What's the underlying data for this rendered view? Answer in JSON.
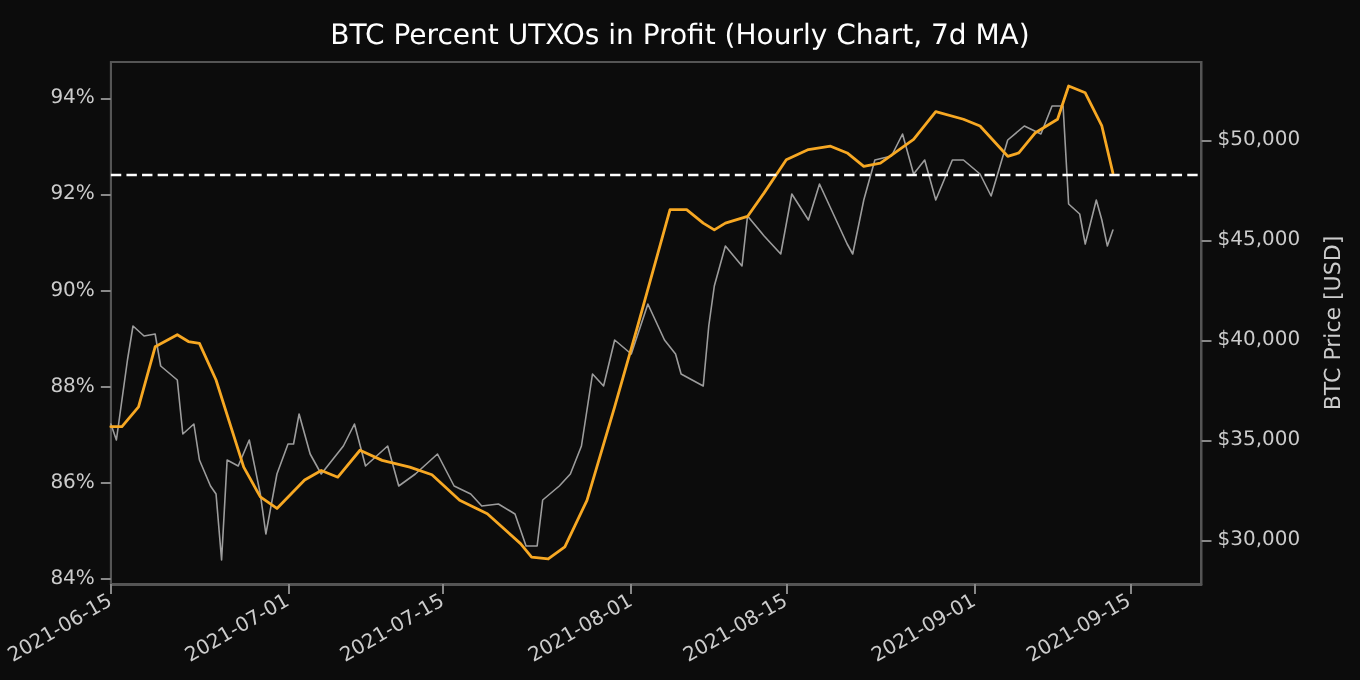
{
  "chart_data": {
    "type": "line",
    "title": "BTC Percent UTXOs in Profit (Hourly Chart, 7d MA)",
    "y2label": "BTC Price [USD]",
    "xlim": [
      "2021-06-15",
      "2021-09-21T12:00"
    ],
    "xticks": [
      "2021-06-15",
      "2021-07-01",
      "2021-07-15",
      "2021-08-01",
      "2021-08-15",
      "2021-09-01",
      "2021-09-15"
    ],
    "ylim": [
      83.9,
      94.75
    ],
    "yticks": [
      {
        "value": 84,
        "label": "84%"
      },
      {
        "value": 86,
        "label": "86%"
      },
      {
        "value": 88,
        "label": "88%"
      },
      {
        "value": 90,
        "label": "90%"
      },
      {
        "value": 92,
        "label": "92%"
      },
      {
        "value": 94,
        "label": "94%"
      }
    ],
    "y2lim": [
      27800,
      53900
    ],
    "y2ticks": [
      {
        "value": 30000,
        "label": "$30,000"
      },
      {
        "value": 35000,
        "label": "$35,000"
      },
      {
        "value": 40000,
        "label": "$40,000"
      },
      {
        "value": 45000,
        "label": "$45,000"
      },
      {
        "value": 50000,
        "label": "$50,000"
      }
    ],
    "grid": false,
    "marker": "none",
    "line_style": "solid",
    "ref_lines": [
      {
        "axis": "y",
        "value": 92.4,
        "color": "#ffffff",
        "line_style": "dashed"
      }
    ],
    "series": [
      {
        "color": "#9c9c9c",
        "axis": "y2",
        "x": [
          "2021-06-15T00:00",
          "2021-06-15T12:00",
          "2021-06-16T12:00",
          "2021-06-17T00:00",
          "2021-06-18T00:00",
          "2021-06-19T00:00",
          "2021-06-19T12:00",
          "2021-06-21T00:00",
          "2021-06-21T12:00",
          "2021-06-22T12:00",
          "2021-06-23T00:00",
          "2021-06-24T00:00",
          "2021-06-24T12:00",
          "2021-06-25T00:00",
          "2021-06-25T12:00",
          "2021-06-26T12:00",
          "2021-06-27T12:00",
          "2021-06-28T12:00",
          "2021-06-29T00:00",
          "2021-06-30T00:00",
          "2021-07-01T00:00",
          "2021-07-01T12:00",
          "2021-07-02T00:00",
          "2021-07-03T00:00",
          "2021-07-04T00:00",
          "2021-07-06T00:00",
          "2021-07-07T00:00",
          "2021-07-08T00:00",
          "2021-07-10T00:00",
          "2021-07-11T00:00",
          "2021-07-12T12:00",
          "2021-07-14T12:00",
          "2021-07-16T00:00",
          "2021-07-17T12:00",
          "2021-07-18T12:00",
          "2021-07-20T00:00",
          "2021-07-21T12:00",
          "2021-07-22T12:00",
          "2021-07-23T12:00",
          "2021-07-24T00:00",
          "2021-07-25T12:00",
          "2021-07-26T12:00",
          "2021-07-27T12:00",
          "2021-07-28T12:00",
          "2021-07-29T12:00",
          "2021-07-30T12:00",
          "2021-08-01T00:00",
          "2021-08-02T12:00",
          "2021-08-04T00:00",
          "2021-08-05T00:00",
          "2021-08-05T12:00",
          "2021-08-06T12:00",
          "2021-08-07T12:00",
          "2021-08-08T00:00",
          "2021-08-08T12:00",
          "2021-08-09T12:00",
          "2021-08-11T00:00",
          "2021-08-11T12:00",
          "2021-08-13T00:00",
          "2021-08-14T12:00",
          "2021-08-15T12:00",
          "2021-08-17T00:00",
          "2021-08-18T00:00",
          "2021-08-19T12:00",
          "2021-08-20T12:00",
          "2021-08-21T00:00",
          "2021-08-22T00:00",
          "2021-08-23T00:00",
          "2021-08-24T12:00",
          "2021-08-25T12:00",
          "2021-08-26T12:00",
          "2021-08-27T12:00",
          "2021-08-28T12:00",
          "2021-08-30T00:00",
          "2021-08-31T00:00",
          "2021-09-01T12:00",
          "2021-09-02T12:00",
          "2021-09-04T00:00",
          "2021-09-05T12:00",
          "2021-09-07T00:00",
          "2021-09-08T00:00",
          "2021-09-09T00:00",
          "2021-09-09T12:00",
          "2021-09-10T12:00",
          "2021-09-11T00:00",
          "2021-09-12T00:00",
          "2021-09-12T12:00",
          "2021-09-13T00:00",
          "2021-09-13T12:00"
        ],
        "values": [
          35800,
          35000,
          39000,
          40700,
          40200,
          40300,
          38700,
          38000,
          35300,
          35800,
          34000,
          32700,
          32300,
          29000,
          34000,
          33700,
          35000,
          32300,
          30300,
          33300,
          34800,
          34800,
          36300,
          34300,
          33300,
          34700,
          35800,
          33700,
          34700,
          32700,
          33300,
          34300,
          32700,
          32300,
          31700,
          31800,
          31300,
          29700,
          29700,
          32000,
          32700,
          33300,
          34700,
          38300,
          37700,
          40000,
          39300,
          41800,
          40000,
          39300,
          38300,
          38000,
          37700,
          40700,
          42700,
          44700,
          43700,
          46200,
          45200,
          44300,
          47300,
          46000,
          47800,
          46000,
          44800,
          44300,
          47000,
          49000,
          49200,
          50300,
          48300,
          49000,
          47000,
          49000,
          49000,
          48300,
          47200,
          50000,
          50700,
          50300,
          51700,
          51700,
          46800,
          46300,
          44800,
          47000,
          46000,
          44700,
          45500
        ]
      },
      {
        "color": "#f7a823",
        "x": [
          "2021-06-15T00:00",
          "2021-06-16T00:00",
          "2021-06-17T12:00",
          "2021-06-19T00:00",
          "2021-06-21T00:00",
          "2021-06-22T00:00",
          "2021-06-23T00:00",
          "2021-06-24T12:00",
          "2021-06-27T00:00",
          "2021-06-28T12:00",
          "2021-06-30T00:00",
          "2021-07-02T12:00",
          "2021-07-04T00:00",
          "2021-07-05T12:00",
          "2021-07-07T12:00",
          "2021-07-09T12:00",
          "2021-07-12T00:00",
          "2021-07-14T00:00",
          "2021-07-16T12:00",
          "2021-07-19T00:00",
          "2021-07-22T00:00",
          "2021-07-23T00:00",
          "2021-07-24T12:00",
          "2021-07-26T00:00",
          "2021-07-28T00:00",
          "2021-07-30T12:00",
          "2021-08-01T12:00",
          "2021-08-04T12:00",
          "2021-08-06T00:00",
          "2021-08-07T12:00",
          "2021-08-08T12:00",
          "2021-08-09T12:00",
          "2021-08-11T12:00",
          "2021-08-13T00:00",
          "2021-08-15T00:00",
          "2021-08-17T00:00",
          "2021-08-19T00:00",
          "2021-08-20T12:00",
          "2021-08-22T00:00",
          "2021-08-23T12:00",
          "2021-08-26T12:00",
          "2021-08-28T12:00",
          "2021-08-31T00:00",
          "2021-09-01T12:00",
          "2021-09-04T00:00",
          "2021-09-05T00:00",
          "2021-09-06T12:00",
          "2021-09-08T12:00",
          "2021-09-09T12:00",
          "2021-09-11T00:00",
          "2021-09-12T12:00",
          "2021-09-13T12:00"
        ],
        "values": [
          87.17,
          87.17,
          87.58,
          88.83,
          89.08,
          88.94,
          88.9,
          88.14,
          86.33,
          85.71,
          85.47,
          86.06,
          86.26,
          86.12,
          86.68,
          86.47,
          86.33,
          86.17,
          85.64,
          85.36,
          84.74,
          84.46,
          84.42,
          84.67,
          85.64,
          87.58,
          89.2,
          91.68,
          91.68,
          91.4,
          91.26,
          91.4,
          91.54,
          92.03,
          92.72,
          92.93,
          93.0,
          92.86,
          92.58,
          92.65,
          93.14,
          93.72,
          93.56,
          93.42,
          92.79,
          92.86,
          93.28,
          93.56,
          94.25,
          94.11,
          93.42,
          92.44
        ]
      }
    ]
  }
}
